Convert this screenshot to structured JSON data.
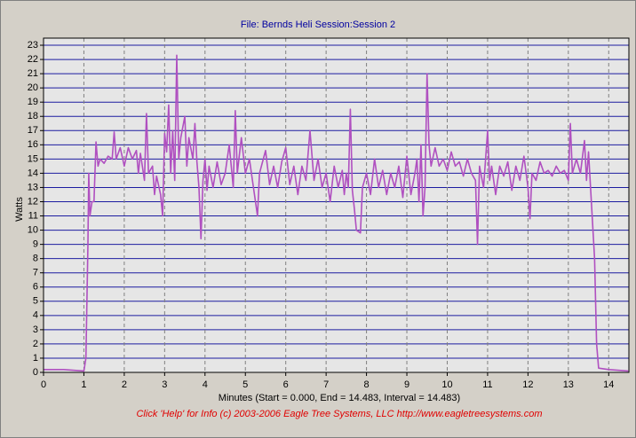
{
  "chart_data": {
    "type": "line",
    "title": "File: Bernds Heli   Session:Session 2",
    "x_label": "Minutes (Start = 0.000,  End = 14.483,  Interval = 14.483)",
    "y_label": "Watts",
    "footer": "Click 'Help' for Info  (c) 2003-2006 Eagle Tree Systems, LLC     http://www.eagletreesystems.com",
    "xlim": [
      0,
      14.5
    ],
    "ylim": [
      0,
      23.5
    ],
    "xticks": [
      0,
      1,
      2,
      3,
      4,
      5,
      6,
      7,
      8,
      9,
      10,
      11,
      12,
      13,
      14
    ],
    "yticks": [
      0,
      1,
      2,
      3,
      4,
      5,
      6,
      7,
      8,
      9,
      10,
      11,
      12,
      13,
      14,
      15,
      16,
      17,
      18,
      19,
      20,
      21,
      22,
      23
    ],
    "grid": true,
    "x": [
      0,
      0.5,
      1.0,
      1.05,
      1.1,
      1.12,
      1.15,
      1.2,
      1.25,
      1.3,
      1.35,
      1.4,
      1.5,
      1.6,
      1.7,
      1.75,
      1.8,
      1.9,
      2.0,
      2.1,
      2.2,
      2.3,
      2.35,
      2.4,
      2.5,
      2.55,
      2.6,
      2.7,
      2.75,
      2.8,
      2.9,
      2.95,
      3.0,
      3.05,
      3.1,
      3.15,
      3.2,
      3.25,
      3.3,
      3.35,
      3.4,
      3.5,
      3.55,
      3.6,
      3.7,
      3.75,
      3.8,
      3.85,
      3.9,
      3.95,
      4.0,
      4.05,
      4.1,
      4.2,
      4.3,
      4.4,
      4.5,
      4.6,
      4.7,
      4.75,
      4.8,
      4.9,
      5.0,
      5.1,
      5.2,
      5.3,
      5.35,
      5.5,
      5.6,
      5.7,
      5.8,
      5.9,
      6.0,
      6.1,
      6.2,
      6.3,
      6.4,
      6.5,
      6.6,
      6.7,
      6.8,
      6.9,
      7.0,
      7.1,
      7.2,
      7.3,
      7.4,
      7.45,
      7.5,
      7.55,
      7.6,
      7.65,
      7.7,
      7.75,
      7.85,
      7.9,
      8.0,
      8.1,
      8.2,
      8.3,
      8.4,
      8.5,
      8.6,
      8.7,
      8.8,
      8.9,
      9.0,
      9.1,
      9.2,
      9.25,
      9.3,
      9.35,
      9.4,
      9.45,
      9.5,
      9.55,
      9.6,
      9.7,
      9.8,
      9.9,
      10.0,
      10.1,
      10.2,
      10.3,
      10.4,
      10.5,
      10.6,
      10.7,
      10.75,
      10.8,
      10.9,
      11.0,
      11.05,
      11.1,
      11.2,
      11.3,
      11.4,
      11.5,
      11.6,
      11.7,
      11.8,
      11.9,
      12.0,
      12.05,
      12.1,
      12.2,
      12.3,
      12.4,
      12.5,
      12.6,
      12.7,
      12.8,
      12.9,
      13.0,
      13.05,
      13.1,
      13.2,
      13.3,
      13.4,
      13.45,
      13.5,
      13.6,
      13.65,
      13.7,
      13.75,
      14.0,
      14.483
    ],
    "series": [
      {
        "name": "Watts",
        "color": "#b050c0",
        "values": [
          0.2,
          0.2,
          0.1,
          1,
          9,
          14,
          11,
          12,
          12,
          16.2,
          14.5,
          15,
          14.7,
          15.2,
          15,
          16.9,
          15,
          15.8,
          14.5,
          15.8,
          15,
          15.6,
          14,
          15.4,
          13.5,
          18.2,
          14,
          14.5,
          12.5,
          13.8,
          12.5,
          11,
          16.8,
          15.5,
          18.8,
          14,
          17,
          13.5,
          22.3,
          15,
          16.5,
          18,
          14.5,
          16.5,
          15,
          17.5,
          14.8,
          13,
          9.4,
          13.5,
          15,
          12.8,
          14.5,
          13,
          14.8,
          13.2,
          14,
          16,
          13,
          18.4,
          14,
          16.5,
          14,
          15,
          13,
          11,
          14,
          15.6,
          13.2,
          14.5,
          13,
          14.8,
          15.8,
          13.2,
          14.5,
          12.5,
          14.5,
          13.5,
          17,
          13.5,
          15,
          13,
          14,
          12,
          14.5,
          13,
          14.2,
          12.5,
          14,
          13,
          18.5,
          12.8,
          11.5,
          10,
          9.8,
          13,
          14,
          12.5,
          15,
          13,
          14.2,
          12.5,
          14,
          13,
          14.5,
          12.3,
          15.2,
          12.5,
          14,
          15,
          12,
          16,
          11,
          13,
          21,
          16,
          14.5,
          15.8,
          14.5,
          15,
          14.2,
          15.5,
          14.5,
          14.8,
          13.8,
          15,
          14,
          13.5,
          9,
          14.5,
          13,
          17,
          13.5,
          14.5,
          12.5,
          14.5,
          13.8,
          14.8,
          12.8,
          14.5,
          13.5,
          15.2,
          13,
          10.8,
          14,
          13.5,
          14.8,
          14,
          14.2,
          13.8,
          14.5,
          14,
          14.2,
          13.5,
          17.5,
          14,
          15,
          14,
          16.3,
          13.5,
          15.5,
          10.5,
          8,
          2,
          0.3,
          0.2,
          0.1
        ]
      }
    ]
  }
}
